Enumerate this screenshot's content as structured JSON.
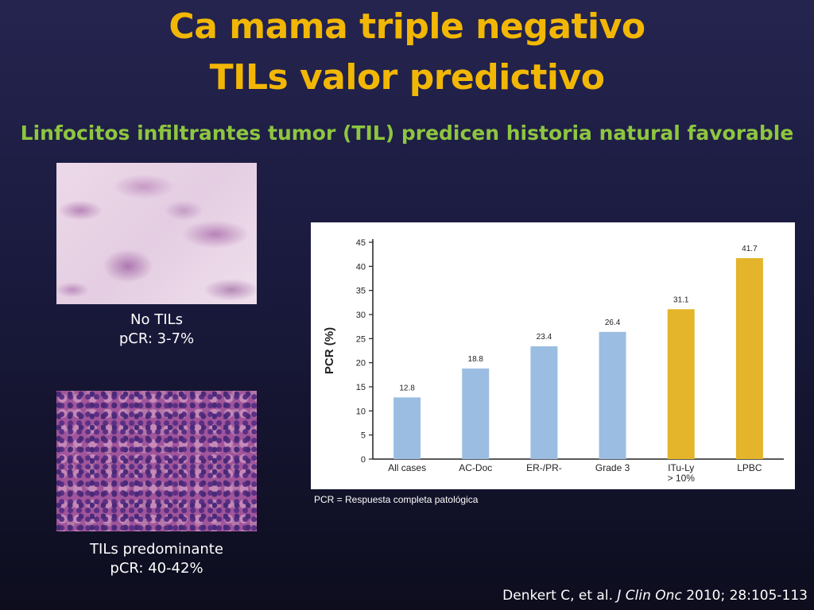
{
  "slide": {
    "title_line1": "Ca mama triple negativo",
    "title_line2": "TILs valor predictivo",
    "subtitle": "Linfocitos infiltrantes tumor (TIL) predicen historia natural favorable",
    "caption_no_tils_1": "No TILs",
    "caption_no_tils_2": "pCR:  3-7%",
    "caption_tils_1": "TILs predominante",
    "caption_tils_2": "pCR:  40-42%",
    "footnote": "PCR = Respuesta completa patológica",
    "citation_authors": "Denkert C, et al. ",
    "citation_journal": "J Clin Onc",
    "citation_rest": "  2010; 28:105-113"
  },
  "colors": {
    "title": "#f2b705",
    "subtitle": "#8ec63f",
    "bar_blue": "#9bbde2",
    "bar_gold": "#e4b52a"
  },
  "chart_data": {
    "type": "bar",
    "ylabel": "PCR (%)",
    "xlabel": "",
    "ylim": [
      0,
      45
    ],
    "yticks": [
      0,
      5,
      10,
      15,
      20,
      25,
      30,
      35,
      40,
      45
    ],
    "categories": [
      {
        "line1": "All cases",
        "line2": ""
      },
      {
        "line1": "AC-Doc",
        "line2": ""
      },
      {
        "line1": "ER-/PR-",
        "line2": ""
      },
      {
        "line1": "Grade 3",
        "line2": ""
      },
      {
        "line1": "ITu-Ly",
        "line2": "> 10%"
      },
      {
        "line1": "LPBC",
        "line2": ""
      }
    ],
    "values": [
      12.8,
      18.8,
      23.4,
      26.4,
      31.1,
      41.7
    ],
    "value_labels": [
      "12.8",
      "18.8",
      "23.4",
      "26.4",
      "31.1",
      "41.7"
    ],
    "bar_colors": [
      "#9bbde2",
      "#9bbde2",
      "#9bbde2",
      "#9bbde2",
      "#e4b52a",
      "#e4b52a"
    ],
    "grid": false,
    "legend": "none"
  }
}
